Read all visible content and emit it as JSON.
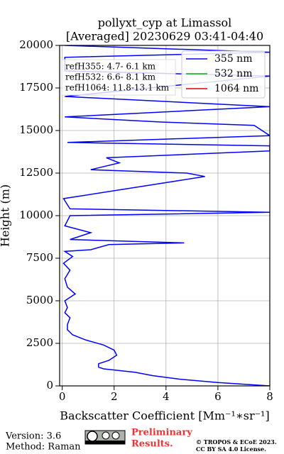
{
  "chart_data": {
    "type": "profile",
    "title": "pollyxt_cyp at Limassol",
    "subtitle": "[Averaged] 20230629 03:41-04:40",
    "x_label": "Backscatter Coefficient [Mm⁻¹∗sr⁻¹]",
    "y_label": "Height (m)",
    "xlim": [
      -0.1,
      8
    ],
    "xticks": [
      0,
      2,
      4,
      6,
      8
    ],
    "ylim": [
      0,
      20000
    ],
    "yticks": [
      0,
      2500,
      5000,
      7500,
      10000,
      12500,
      15000,
      17500,
      20000
    ],
    "grid": true,
    "legend": "upper right",
    "annotations": [
      "refH355:  4.7- 6.1 km",
      "refH532:  6.6- 8.1 km",
      "refH1064: 11.8-13.1 km"
    ],
    "heights": [
      0,
      100,
      200,
      400,
      600,
      800,
      1000,
      1100,
      1300,
      1500,
      1800,
      2100,
      2400,
      2700,
      3000,
      3300,
      3600,
      4000,
      4300,
      4600,
      5000,
      5400,
      5800,
      6300,
      6800,
      7200,
      7600,
      7900,
      8000,
      8300,
      8400,
      8600,
      9000,
      9400,
      10000,
      10200,
      10400,
      11000,
      12300,
      12500,
      12700,
      13100,
      13400,
      13800,
      14100,
      14300,
      14700,
      15300,
      15500,
      15800,
      16400,
      17000,
      18200,
      18500,
      19300,
      19600,
      20000
    ],
    "series": [
      {
        "name": "355 nm",
        "color": "#0000ff",
        "values": [
          8.0,
          7.0,
          6.0,
          4.5,
          3.5,
          2.8,
          1.6,
          1.4,
          1.4,
          1.8,
          2.1,
          2.0,
          1.6,
          0.9,
          0.4,
          0.2,
          0.2,
          0.3,
          0.1,
          0.2,
          0.1,
          0.5,
          0.2,
          0.1,
          0.3,
          0.05,
          0.4,
          0.1,
          1.1,
          1.8,
          4.7,
          0.3,
          1.1,
          0.1,
          0.3,
          8.0,
          0.3,
          0.05,
          5.5,
          4.8,
          1.1,
          2.2,
          1.7,
          8.0,
          8.0,
          0.2,
          8.0,
          7.4,
          3.8,
          0.1,
          8.0,
          0.1,
          8.0,
          0.1,
          0.1,
          8.0,
          0.1
        ]
      },
      {
        "name": "532 nm",
        "color": "#00b000",
        "values": [
          null,
          null,
          null,
          null,
          null,
          null,
          null,
          null,
          null,
          null,
          null,
          null,
          null,
          null,
          null,
          null,
          null,
          null,
          null,
          null,
          null,
          null,
          null,
          null,
          null,
          null,
          null,
          null,
          null,
          null,
          null,
          null,
          null,
          null,
          null,
          null,
          null,
          null,
          null,
          null,
          null,
          null,
          null,
          null,
          null,
          null,
          null,
          null,
          null,
          null,
          null,
          null,
          null,
          null,
          null,
          null,
          null
        ]
      },
      {
        "name": "1064 nm",
        "color": "#e00000",
        "values": [
          null,
          null,
          null,
          null,
          null,
          null,
          null,
          null,
          null,
          null,
          null,
          null,
          null,
          null,
          null,
          null,
          null,
          null,
          null,
          null,
          null,
          null,
          null,
          null,
          null,
          null,
          null,
          null,
          null,
          null,
          null,
          null,
          null,
          null,
          null,
          null,
          null,
          null,
          null,
          null,
          null,
          null,
          null,
          null,
          null,
          null,
          null,
          null,
          null,
          null,
          null,
          null,
          null,
          null,
          null,
          null,
          null
        ]
      }
    ]
  },
  "footer": {
    "version": "Version: 3.6",
    "method": "Method: Raman",
    "status_1": "Preliminary",
    "status_2": "Results.",
    "copyright_1": "© TROPOS & ECoE 2023.",
    "copyright_2": "CC BY SA 4.0 License."
  }
}
